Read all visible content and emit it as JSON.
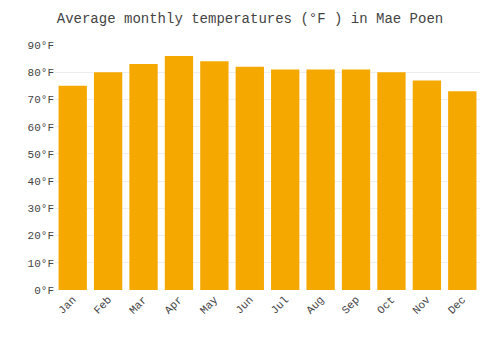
{
  "chart_data": {
    "type": "bar",
    "title": "Average monthly temperatures (°F ) in Mae Poen",
    "categories": [
      "Jan",
      "Feb",
      "Mar",
      "Apr",
      "May",
      "Jun",
      "Jul",
      "Aug",
      "Sep",
      "Oct",
      "Nov",
      "Dec"
    ],
    "values": [
      75,
      80,
      83,
      86,
      84,
      82,
      81,
      81,
      81,
      80,
      77,
      73
    ],
    "color": "#F5A800",
    "ylim": [
      0,
      90
    ],
    "yticks": [
      {
        "value": 0,
        "label": "0°F"
      },
      {
        "value": 10,
        "label": "10°F"
      },
      {
        "value": 20,
        "label": "20°F"
      },
      {
        "value": 30,
        "label": "30°F"
      },
      {
        "value": 40,
        "label": "40°F"
      },
      {
        "value": 50,
        "label": "50°F"
      },
      {
        "value": 60,
        "label": "60°F"
      },
      {
        "value": 70,
        "label": "70°F"
      },
      {
        "value": 80,
        "label": "80°F"
      },
      {
        "value": 90,
        "label": "90°F"
      }
    ],
    "grid": true
  }
}
